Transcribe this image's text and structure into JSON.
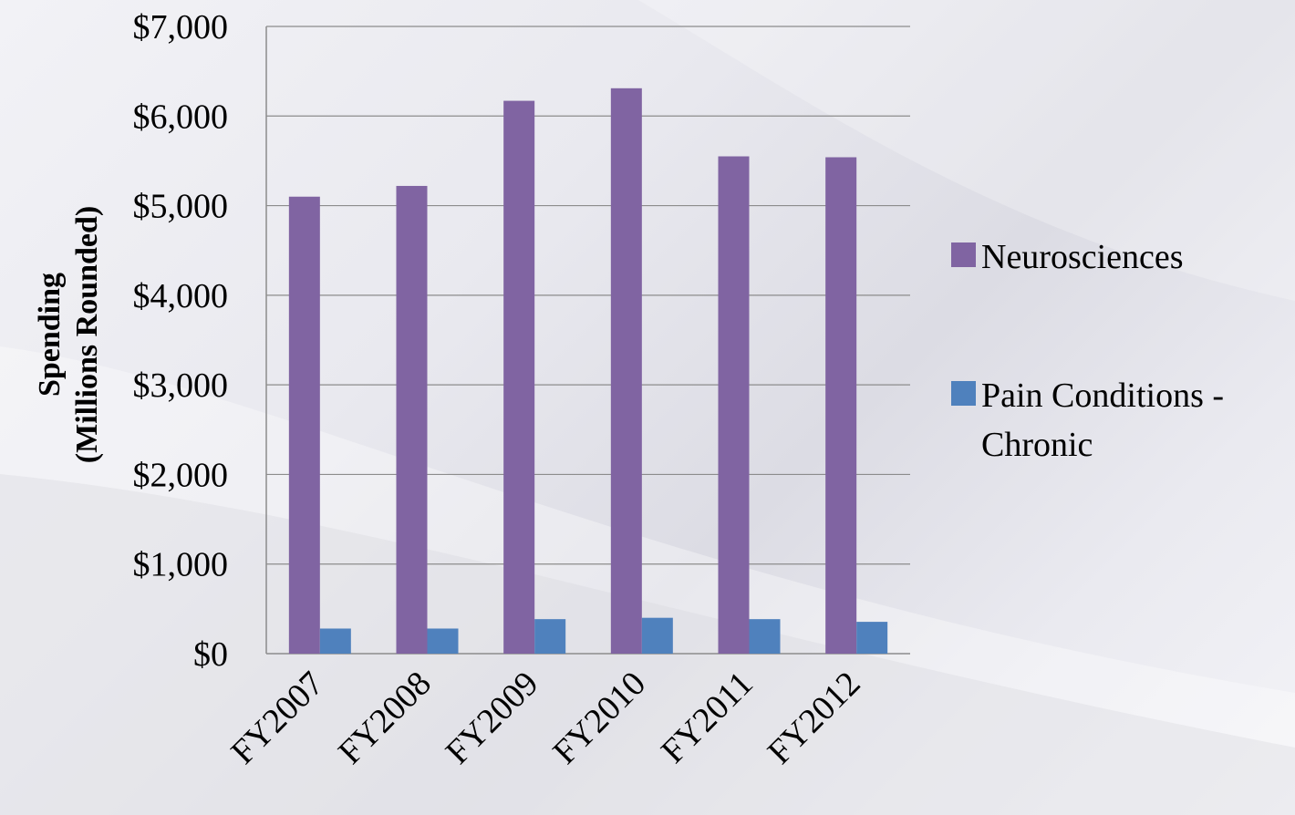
{
  "chart_data": {
    "type": "bar",
    "categories": [
      "FY2007",
      "FY2008",
      "FY2009",
      "FY2010",
      "FY2011",
      "FY2012"
    ],
    "series": [
      {
        "name": "Neurosciences",
        "values": [
          5100,
          5220,
          6170,
          6310,
          5550,
          5540
        ],
        "color": "#8064A2"
      },
      {
        "name": "Pain Conditions - Chronic",
        "values": [
          280,
          280,
          385,
          400,
          385,
          355
        ],
        "color": "#4F81BD"
      }
    ],
    "yticks": [
      "$0",
      "$1,000",
      "$2,000",
      "$3,000",
      "$4,000",
      "$5,000",
      "$6,000",
      "$7,000"
    ],
    "ylim": [
      0,
      7000
    ],
    "ylabel_line1": "Spending",
    "ylabel_line2": "(Millions Rounded)",
    "legend": {
      "position": "right",
      "entries": [
        {
          "lines": [
            "Neurosciences"
          ]
        },
        {
          "lines": [
            "Pain Conditions -",
            "Chronic"
          ]
        }
      ]
    },
    "grid": true
  }
}
